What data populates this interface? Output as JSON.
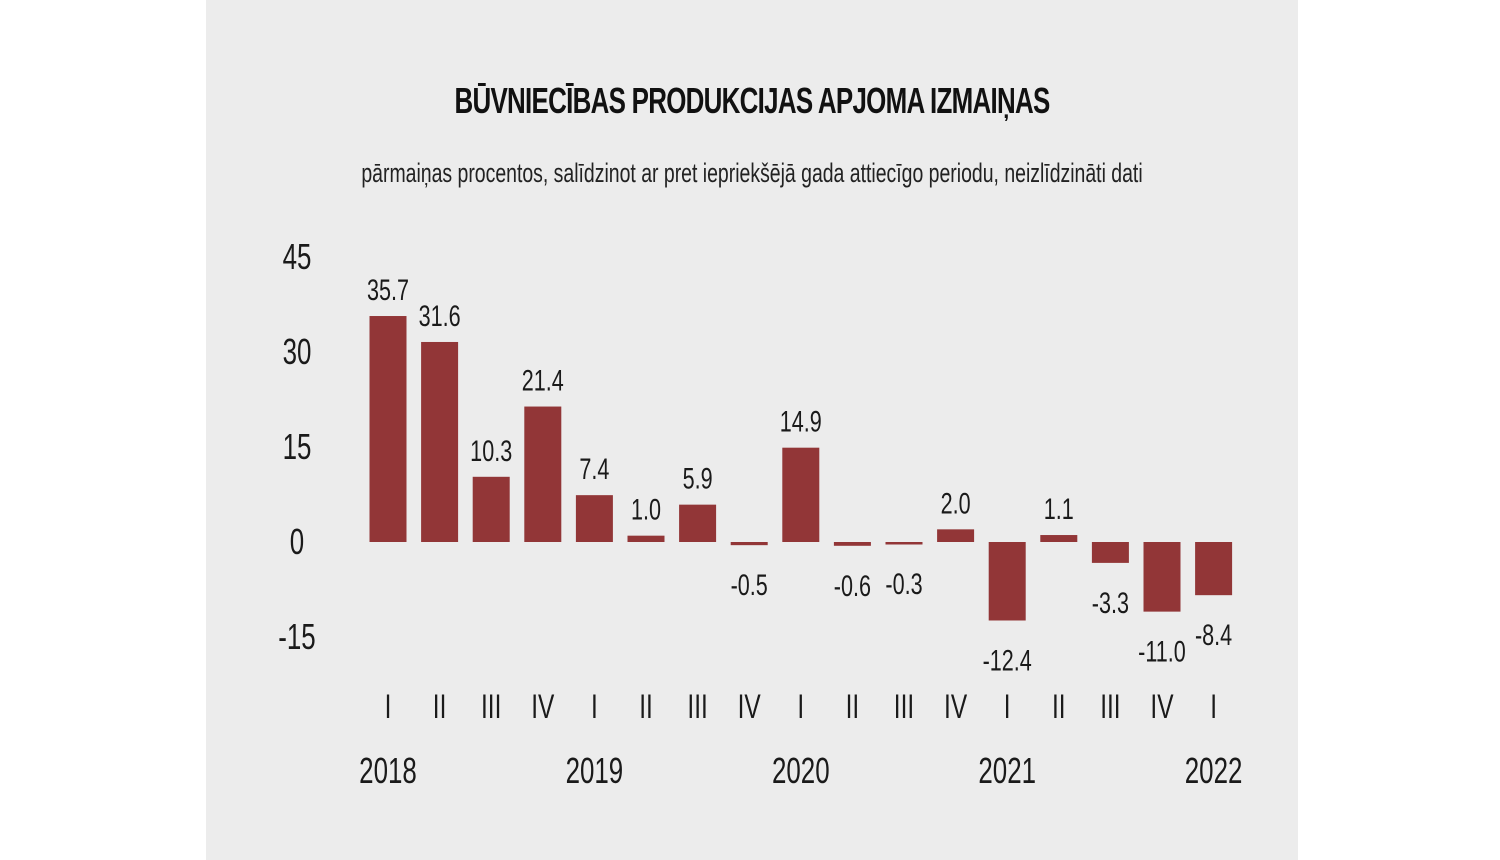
{
  "chart_data": {
    "type": "bar",
    "title": "BŪVNIECĪBAS PRODUKCIJAS APJOMA IZMAIŅAS",
    "subtitle": "pārmaiņas procentos, salīdzinot ar pret iepriekšējā gada attiecīgo periodu, neizlīdzināti dati",
    "categories": [
      "I",
      "II",
      "III",
      "IV",
      "I",
      "II",
      "III",
      "IV",
      "I",
      "II",
      "III",
      "IV",
      "I",
      "II",
      "III",
      "IV",
      "I"
    ],
    "years": [
      {
        "label": "2018",
        "index": 0
      },
      {
        "label": "2019",
        "index": 4
      },
      {
        "label": "2020",
        "index": 8
      },
      {
        "label": "2021",
        "index": 12
      },
      {
        "label": "2022",
        "index": 16
      }
    ],
    "values": [
      35.7,
      31.6,
      10.3,
      21.4,
      7.4,
      1.0,
      5.9,
      -0.5,
      14.9,
      -0.6,
      -0.3,
      2.0,
      -12.4,
      1.1,
      -3.3,
      -11.0,
      -8.4
    ],
    "value_labels": [
      "35.7",
      "31.6",
      "10.3",
      "21.4",
      "7.4",
      "1.0",
      "5.9",
      "-0.5",
      "14.9",
      "-0.6",
      "-0.3",
      "2.0",
      "-12.4",
      "1.1",
      "-3.3",
      "-11.0",
      "-8.4"
    ],
    "yticks": [
      "45",
      "30",
      "15",
      "0",
      "-15"
    ],
    "ylim": [
      -15,
      45
    ],
    "bar_color": "#923637",
    "grid": false
  }
}
